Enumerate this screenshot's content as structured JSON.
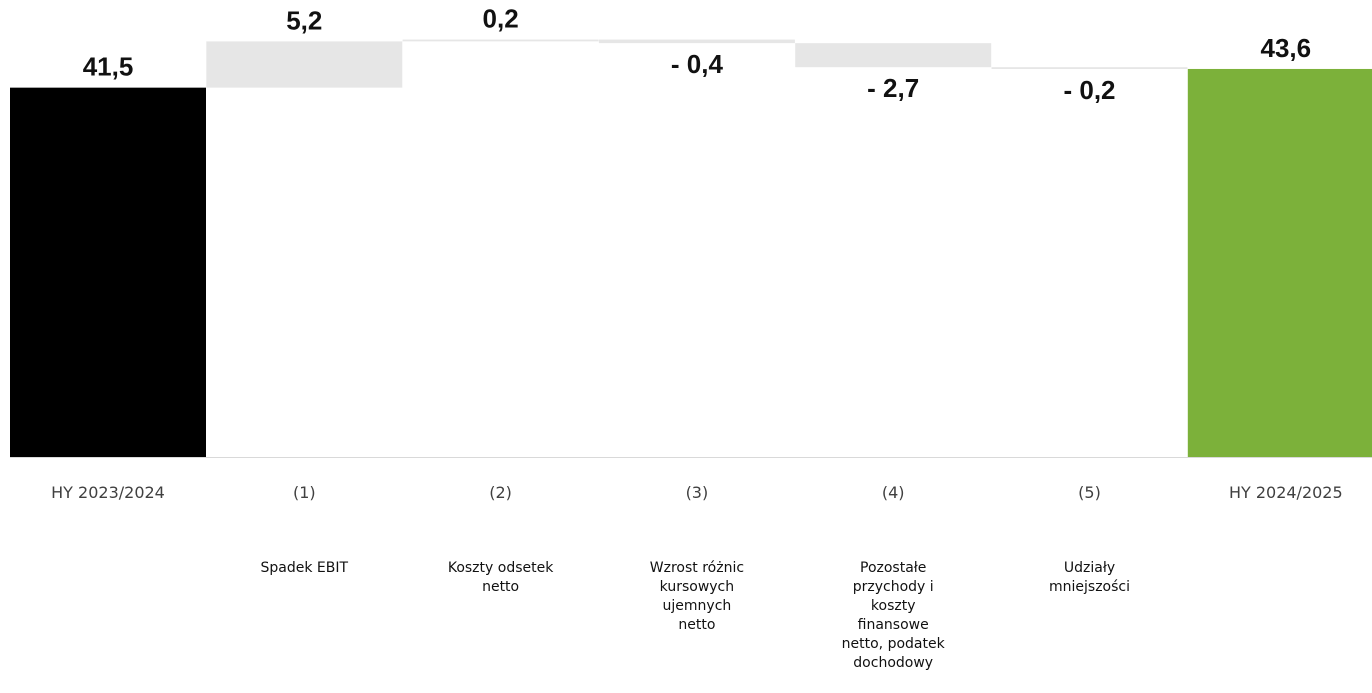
{
  "chart_data": {
    "type": "waterfall",
    "title": "",
    "xlabel": "",
    "ylabel": "",
    "ylim": [
      0,
      50
    ],
    "categories": [
      "HY 2023/2024",
      "(1)",
      "(2)",
      "(3)",
      "(4)",
      "(5)",
      "HY 2024/2025"
    ],
    "descriptions": [
      [],
      [
        "Spadek EBIT"
      ],
      [
        "Koszty odsetek",
        "netto"
      ],
      [
        "Wzrost różnic",
        "kursowych",
        "ujemnych",
        "netto"
      ],
      [
        "Pozostałe",
        "przychody i",
        "koszty",
        "finansowe",
        "netto, podatek",
        "dochodowy"
      ],
      [
        "Udziały",
        "mniejszości"
      ],
      []
    ],
    "values": [
      41.5,
      5.2,
      0.2,
      -0.4,
      -2.7,
      -0.2,
      43.6
    ],
    "value_labels": [
      "41,5",
      "5,2",
      "0,2",
      "- 0,4",
      "- 2,7",
      "- 0,2",
      "43,6"
    ],
    "kinds": [
      "total",
      "delta",
      "delta",
      "delta",
      "delta",
      "delta",
      "total"
    ],
    "colors": {
      "start_total": "#000000",
      "end_total": "#7cb13a",
      "delta": "#e6e6e6",
      "baseline": "#d9d9d9"
    },
    "grid": false,
    "legend": "none"
  }
}
